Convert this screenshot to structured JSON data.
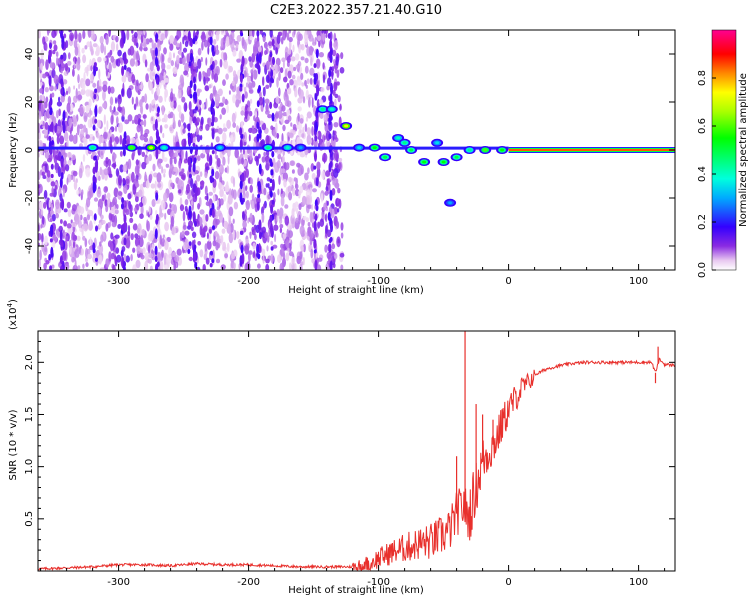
{
  "title": "C2E3.2022.357.21.40.G10",
  "chart_data": [
    {
      "type": "heatmap",
      "xlabel": "Height of straight line (km)",
      "ylabel": "Frequency (Hz)",
      "xlim": [
        -362,
        128
      ],
      "ylim": [
        -50,
        50
      ],
      "xticks": [
        -300,
        -200,
        -100,
        0,
        100
      ],
      "yticks": [
        -40,
        -20,
        0,
        20,
        40
      ],
      "colorbar": {
        "label": "Normalized spectral amplitude",
        "range": [
          0,
          1
        ],
        "ticks": [
          0.0,
          0.2,
          0.4,
          0.6,
          0.8
        ]
      },
      "tone_band": {
        "x_start": 0,
        "x_end": 128,
        "frequency": 0,
        "amplitude": 0.85
      },
      "strong_features": [
        {
          "x": -320,
          "y": 1,
          "a": 0.45
        },
        {
          "x": -290,
          "y": 1,
          "a": 0.6
        },
        {
          "x": -275,
          "y": 1,
          "a": 0.7
        },
        {
          "x": -265,
          "y": 1,
          "a": 0.4
        },
        {
          "x": -222,
          "y": 1,
          "a": 0.35
        },
        {
          "x": -185,
          "y": 1,
          "a": 0.45
        },
        {
          "x": -170,
          "y": 1,
          "a": 0.4
        },
        {
          "x": -160,
          "y": 1,
          "a": 0.3
        },
        {
          "x": -143,
          "y": 17,
          "a": 0.45
        },
        {
          "x": -136,
          "y": 17,
          "a": 0.4
        },
        {
          "x": -125,
          "y": 10,
          "a": 0.75
        },
        {
          "x": -115,
          "y": 1,
          "a": 0.35
        },
        {
          "x": -103,
          "y": 1,
          "a": 0.55
        },
        {
          "x": -95,
          "y": -3,
          "a": 0.5
        },
        {
          "x": -85,
          "y": 5,
          "a": 0.4
        },
        {
          "x": -80,
          "y": 3,
          "a": 0.45
        },
        {
          "x": -75,
          "y": 0,
          "a": 0.5
        },
        {
          "x": -65,
          "y": -5,
          "a": 0.55
        },
        {
          "x": -55,
          "y": 3,
          "a": 0.35
        },
        {
          "x": -50,
          "y": -5,
          "a": 0.55
        },
        {
          "x": -45,
          "y": -22,
          "a": 0.3
        },
        {
          "x": -40,
          "y": -3,
          "a": 0.5
        },
        {
          "x": -30,
          "y": 0,
          "a": 0.45
        },
        {
          "x": -18,
          "y": 0,
          "a": 0.6
        },
        {
          "x": -5,
          "y": 0,
          "a": 0.55
        }
      ]
    },
    {
      "type": "line",
      "xlabel": "Height of straight line (km)",
      "ylabel": "SNR (10 * v/v)",
      "yscale_label": "(x10",
      "yscale_exponent": "4",
      "yscale_close": ")",
      "xlim": [
        -362,
        128
      ],
      "ylim": [
        0,
        2.3
      ],
      "xticks": [
        -300,
        -200,
        -100,
        0,
        100
      ],
      "yticks": [
        0.5,
        1.0,
        1.5,
        2.0
      ],
      "color": "#e8302c",
      "series": [
        {
          "x": [
            -362,
            -340,
            -320,
            -300,
            -280,
            -260,
            -240,
            -220,
            -200,
            -180,
            -160,
            -140,
            -120,
            -110,
            -100,
            -90,
            -80,
            -70,
            -60,
            -50,
            -45,
            -40,
            -36,
            -34,
            -32,
            -30,
            -25,
            -20,
            -15,
            -10,
            -5,
            0,
            5,
            10,
            15,
            20,
            30,
            40,
            50,
            60,
            80,
            100,
            110,
            113,
            116,
            120,
            128
          ],
          "values": [
            0.02,
            0.03,
            0.04,
            0.06,
            0.06,
            0.05,
            0.07,
            0.06,
            0.06,
            0.05,
            0.04,
            0.04,
            0.04,
            0.06,
            0.12,
            0.18,
            0.22,
            0.26,
            0.28,
            0.35,
            0.4,
            0.55,
            0.6,
            0.65,
            0.5,
            0.55,
            0.8,
            1.05,
            1.15,
            1.25,
            1.4,
            1.55,
            1.65,
            1.75,
            1.8,
            1.88,
            1.94,
            1.97,
            1.99,
            2.0,
            2.0,
            2.0,
            2.0,
            1.9,
            2.03,
            1.98,
            1.97
          ]
        }
      ],
      "spikes": [
        {
          "x": -33.5,
          "value": 2.3
        },
        {
          "x": -40,
          "value": 1.1
        },
        {
          "x": -25,
          "value": 1.6
        },
        {
          "x": -20,
          "value": 1.5
        },
        {
          "x": -12,
          "value": 1.45
        },
        {
          "x": -5,
          "value": 1.55
        },
        {
          "x": 113,
          "value": 1.8
        },
        {
          "x": 115,
          "value": 2.15
        }
      ]
    }
  ]
}
